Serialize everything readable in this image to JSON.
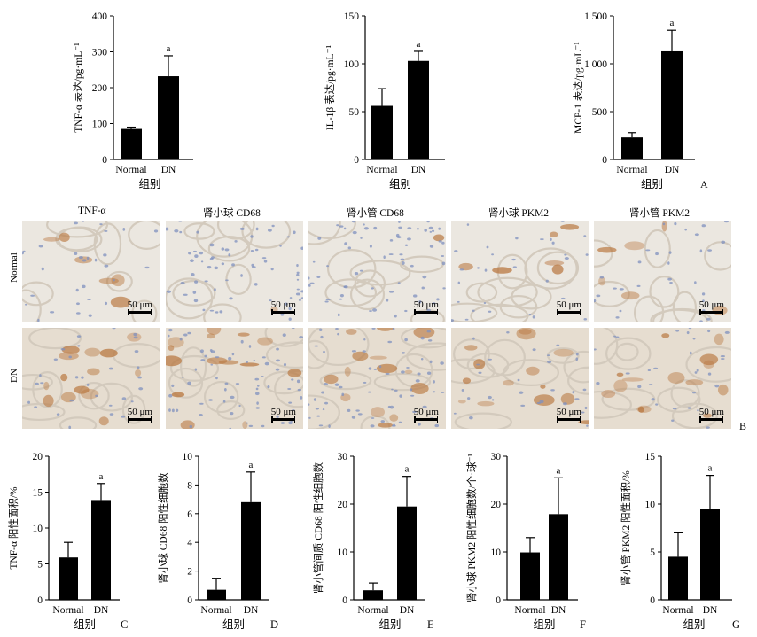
{
  "x_axis_title": "组别",
  "sig_marker": "a",
  "groups": [
    "Normal",
    "DN"
  ],
  "panel_a_label": "A",
  "panel_b_label": "B",
  "panel_b": {
    "columns": [
      "TNF-α",
      "肾小球 CD68",
      "肾小管 CD68",
      "肾小球 PKM2",
      "肾小管 PKM2"
    ],
    "rows": [
      "Normal",
      "DN"
    ],
    "scale_bar": "50 μm",
    "colors": {
      "normal_bg": "#ebe7e0",
      "dn_bg": "#e6ddd0",
      "nuclei": "#7f90bf",
      "stain": "#b8763e"
    }
  },
  "chart_data": [
    {
      "id": "A1",
      "type": "bar",
      "panel": "A",
      "categories": [
        "Normal",
        "DN"
      ],
      "values": [
        85,
        232
      ],
      "errors": [
        5,
        57
      ],
      "ylabel": "TNF-α 表达/pg·mL⁻¹",
      "xlabel": "组别",
      "ylim": [
        0,
        400
      ],
      "yticks": [
        "0",
        "100",
        "200",
        "300",
        "400"
      ],
      "significance": [
        null,
        "a"
      ]
    },
    {
      "id": "A2",
      "type": "bar",
      "panel": "A",
      "categories": [
        "Normal",
        "DN"
      ],
      "values": [
        56,
        103
      ],
      "errors": [
        18,
        10
      ],
      "ylabel": "IL-1β 表达/pg·mL⁻¹",
      "xlabel": "组别",
      "ylim": [
        0,
        150
      ],
      "yticks": [
        "0",
        "50",
        "100",
        "150"
      ],
      "significance": [
        null,
        "a"
      ]
    },
    {
      "id": "A3",
      "type": "bar",
      "panel": "A",
      "categories": [
        "Normal",
        "DN"
      ],
      "values": [
        230,
        1130
      ],
      "errors": [
        50,
        220
      ],
      "ylabel": "MCP-1 表达/pg·mL⁻¹",
      "xlabel": "组别",
      "ylim": [
        0,
        1500
      ],
      "yticks": [
        "0",
        "500",
        "1 000",
        "1 500"
      ],
      "significance": [
        null,
        "a"
      ]
    },
    {
      "id": "C",
      "type": "bar",
      "panel": "C",
      "categories": [
        "Normal",
        "DN"
      ],
      "values": [
        5.9,
        13.9
      ],
      "errors": [
        2.1,
        2.3
      ],
      "ylabel": "TNF-α 阳性面积/%",
      "xlabel": "组别",
      "ylim": [
        0,
        20
      ],
      "yticks": [
        "0",
        "5",
        "10",
        "15",
        "20"
      ],
      "significance": [
        null,
        "a"
      ]
    },
    {
      "id": "D",
      "type": "bar",
      "panel": "D",
      "categories": [
        "Normal",
        "DN"
      ],
      "values": [
        0.7,
        6.8
      ],
      "errors": [
        0.8,
        2.1
      ],
      "ylabel": "肾小球 CD68 阳性细胞数",
      "xlabel": "组别",
      "ylim": [
        0,
        10
      ],
      "yticks": [
        "0",
        "2",
        "4",
        "6",
        "8",
        "10"
      ],
      "significance": [
        null,
        "a"
      ]
    },
    {
      "id": "E",
      "type": "bar",
      "panel": "E",
      "categories": [
        "Normal",
        "DN"
      ],
      "values": [
        2,
        19.5
      ],
      "errors": [
        1.5,
        6.3
      ],
      "ylabel": "肾小管间质 CD68 阳性细胞数",
      "xlabel": "组别",
      "ylim": [
        0,
        30
      ],
      "yticks": [
        "0",
        "10",
        "20",
        "30"
      ],
      "significance": [
        null,
        "a"
      ]
    },
    {
      "id": "F",
      "type": "bar",
      "panel": "F",
      "categories": [
        "Normal",
        "DN"
      ],
      "values": [
        9.9,
        17.9
      ],
      "errors": [
        3.1,
        7.6
      ],
      "ylabel": "肾小球 PKM2 阳性细胞数/个·球⁻¹",
      "xlabel": "组别",
      "ylim": [
        0,
        30
      ],
      "yticks": [
        "0",
        "10",
        "20",
        "30"
      ],
      "significance": [
        null,
        "a"
      ]
    },
    {
      "id": "G",
      "type": "bar",
      "panel": "G",
      "categories": [
        "Normal",
        "DN"
      ],
      "values": [
        4.5,
        9.5
      ],
      "errors": [
        2.5,
        3.5
      ],
      "ylabel": "肾小管 PKM2 阳性面积/%",
      "xlabel": "组别",
      "ylim": [
        0,
        15
      ],
      "yticks": [
        "0",
        "5",
        "10",
        "15"
      ],
      "significance": [
        null,
        "a"
      ]
    }
  ]
}
